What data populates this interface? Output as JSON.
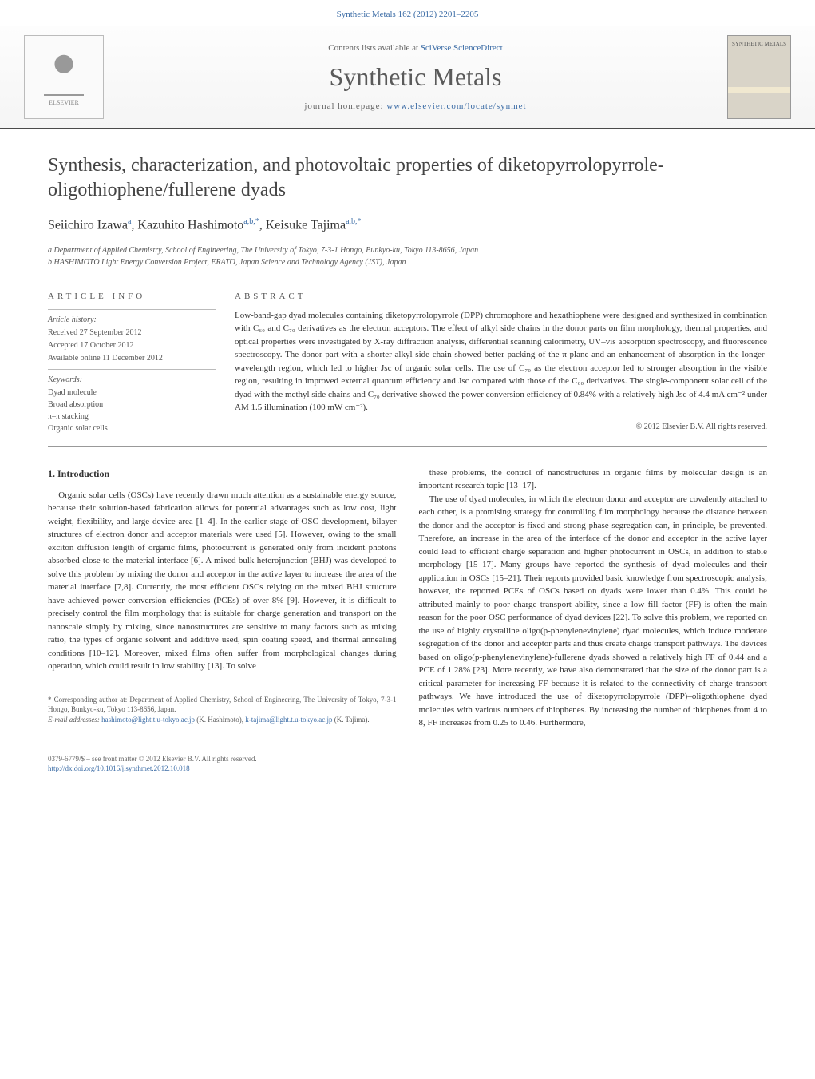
{
  "citation": "Synthetic Metals 162 (2012) 2201–2205",
  "header": {
    "contents_prefix": "Contents lists available at ",
    "contents_link": "SciVerse ScienceDirect",
    "journal": "Synthetic Metals",
    "homepage_prefix": "journal homepage: ",
    "homepage_url": "www.elsevier.com/locate/synmet",
    "publisher_name": "ELSEVIER",
    "cover_label": "SYNTHETIC METALS"
  },
  "title": "Synthesis, characterization, and photovoltaic properties of diketopyrrolopyrrole-oligothiophene/fullerene dyads",
  "authors_html": "Seiichiro Izawa<sup>a</sup>, Kazuhito Hashimoto<sup>a,b,*</sup>, Keisuke Tajima<sup>a,b,*</sup>",
  "affiliations": [
    "a Department of Applied Chemistry, School of Engineering, The University of Tokyo, 7-3-1 Hongo, Bunkyo-ku, Tokyo 113-8656, Japan",
    "b HASHIMOTO Light Energy Conversion Project, ERATO, Japan Science and Technology Agency (JST), Japan"
  ],
  "article_info": {
    "heading": "ARTICLE INFO",
    "history_label": "Article history:",
    "received": "Received 27 September 2012",
    "accepted": "Accepted 17 October 2012",
    "online": "Available online 11 December 2012",
    "keywords_label": "Keywords:",
    "keywords": [
      "Dyad molecule",
      "Broad absorption",
      "π–π stacking",
      "Organic solar cells"
    ]
  },
  "abstract": {
    "heading": "ABSTRACT",
    "text": "Low-band-gap dyad molecules containing diketopyrrolopyrrole (DPP) chromophore and hexathiophene were designed and synthesized in combination with C₆₀ and C₇₀ derivatives as the electron acceptors. The effect of alkyl side chains in the donor parts on film morphology, thermal properties, and optical properties were investigated by X-ray diffraction analysis, differential scanning calorimetry, UV–vis absorption spectroscopy, and fluorescence spectroscopy. The donor part with a shorter alkyl side chain showed better packing of the π-plane and an enhancement of absorption in the longer-wavelength region, which led to higher Jsc of organic solar cells. The use of C₇₀ as the electron acceptor led to stronger absorption in the visible region, resulting in improved external quantum efficiency and Jsc compared with those of the C₆₀ derivatives. The single-component solar cell of the dyad with the methyl side chains and C₇₀ derivative showed the power conversion efficiency of 0.84% with a relatively high Jsc of 4.4 mA cm⁻² under AM 1.5 illumination (100 mW cm⁻²).",
    "copyright": "© 2012 Elsevier B.V. All rights reserved."
  },
  "section1": {
    "heading": "1. Introduction",
    "p1": "Organic solar cells (OSCs) have recently drawn much attention as a sustainable energy source, because their solution-based fabrication allows for potential advantages such as low cost, light weight, flexibility, and large device area [1–4]. In the earlier stage of OSC development, bilayer structures of electron donor and acceptor materials were used [5]. However, owing to the small exciton diffusion length of organic films, photocurrent is generated only from incident photons absorbed close to the material interface [6]. A mixed bulk heterojunction (BHJ) was developed to solve this problem by mixing the donor and acceptor in the active layer to increase the area of the material interface [7,8]. Currently, the most efficient OSCs relying on the mixed BHJ structure have achieved power conversion efficiencies (PCEs) of over 8% [9]. However, it is difficult to precisely control the film morphology that is suitable for charge generation and transport on the nanoscale simply by mixing, since nanostructures are sensitive to many factors such as mixing ratio, the types of organic solvent and additive used, spin coating speed, and thermal annealing conditions [10–12]. Moreover, mixed films often suffer from morphological changes during operation, which could result in low stability [13]. To solve",
    "p2": "these problems, the control of nanostructures in organic films by molecular design is an important research topic [13–17].",
    "p3": "The use of dyad molecules, in which the electron donor and acceptor are covalently attached to each other, is a promising strategy for controlling film morphology because the distance between the donor and the acceptor is fixed and strong phase segregation can, in principle, be prevented. Therefore, an increase in the area of the interface of the donor and acceptor in the active layer could lead to efficient charge separation and higher photocurrent in OSCs, in addition to stable morphology [15–17]. Many groups have reported the synthesis of dyad molecules and their application in OSCs [15–21]. Their reports provided basic knowledge from spectroscopic analysis; however, the reported PCEs of OSCs based on dyads were lower than 0.4%. This could be attributed mainly to poor charge transport ability, since a low fill factor (FF) is often the main reason for the poor OSC performance of dyad devices [22]. To solve this problem, we reported on the use of highly crystalline oligo(p-phenylenevinylene) dyad molecules, which induce moderate segregation of the donor and acceptor parts and thus create charge transport pathways. The devices based on oligo(p-phenylenevinylene)-fullerene dyads showed a relatively high FF of 0.44 and a PCE of 1.28% [23]. More recently, we have also demonstrated that the size of the donor part is a critical parameter for increasing FF because it is related to the connectivity of charge transport pathways. We have introduced the use of diketopyrrolopyrrole (DPP)–oligothiophene dyad molecules with various numbers of thiophenes. By increasing the number of thiophenes from 4 to 8, FF increases from 0.25 to 0.46. Furthermore,"
  },
  "footnote": {
    "corr": "* Corresponding author at: Department of Applied Chemistry, School of Engineering, The University of Tokyo, 7-3-1 Hongo, Bunkyo-ku, Tokyo 113-8656, Japan.",
    "email_label": "E-mail addresses: ",
    "email1": "hashimoto@light.t.u-tokyo.ac.jp",
    "email1_name": " (K. Hashimoto), ",
    "email2": "k-tajima@light.t.u-tokyo.ac.jp",
    "email2_name": " (K. Tajima)."
  },
  "bottom": {
    "issn": "0379-6779/$ – see front matter © 2012 Elsevier B.V. All rights reserved.",
    "doi": "http://dx.doi.org/10.1016/j.synthmet.2012.10.018"
  },
  "colors": {
    "link": "#3a6ba5",
    "text": "#333333",
    "border": "#999999"
  }
}
